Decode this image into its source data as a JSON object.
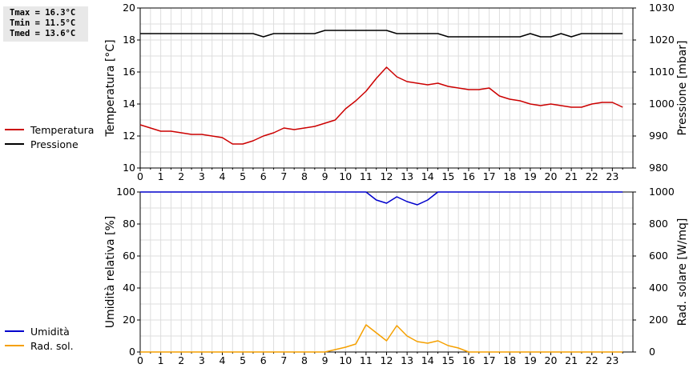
{
  "stats": {
    "tmax": "Tmax = 16.3°C",
    "tmin": "Tmin = 11.5°C",
    "tmed": "Tmed = 13.6°C"
  },
  "colors": {
    "temperature": "#cc0000",
    "pressure": "#000000",
    "humidity": "#0000cc",
    "solar": "#f5a000",
    "grid": "#dddddd"
  },
  "chart_data": [
    {
      "type": "line",
      "xlabel": "",
      "x_ticks": [
        "0",
        "1",
        "2",
        "3",
        "4",
        "5",
        "6",
        "7",
        "8",
        "9",
        "10",
        "11",
        "12",
        "13",
        "14",
        "15",
        "16",
        "17",
        "18",
        "19",
        "20",
        "21",
        "22",
        "23"
      ],
      "xlim": [
        0,
        24
      ],
      "ylabel": "Temperatura [°C]",
      "ylim": [
        10,
        20
      ],
      "y_ticks": [
        "10",
        "12",
        "14",
        "16",
        "18",
        "20"
      ],
      "y2label": "Pressione [mbar]",
      "y2lim": [
        980,
        1030
      ],
      "y2_ticks": [
        "980",
        "990",
        "1000",
        "1010",
        "1020",
        "1030"
      ],
      "grid": true,
      "legend": "left",
      "series": [
        {
          "name": "Temperatura",
          "axis": "left",
          "x": [
            0,
            0.5,
            1,
            1.5,
            2,
            2.5,
            3,
            3.5,
            4,
            4.5,
            5,
            5.5,
            6,
            6.5,
            7,
            7.5,
            8,
            8.5,
            9,
            9.5,
            10,
            10.5,
            11,
            11.5,
            12,
            12.5,
            13,
            13.5,
            14,
            14.5,
            15,
            15.5,
            16,
            16.5,
            17,
            17.5,
            18,
            18.5,
            19,
            19.5,
            20,
            20.5,
            21,
            21.5,
            22,
            22.5,
            23,
            23.5
          ],
          "y": [
            12.7,
            12.5,
            12.3,
            12.3,
            12.2,
            12.1,
            12.1,
            12.0,
            11.9,
            11.5,
            11.5,
            11.7,
            12.0,
            12.2,
            12.5,
            12.4,
            12.5,
            12.6,
            12.8,
            13.0,
            13.7,
            14.2,
            14.8,
            15.6,
            16.3,
            15.7,
            15.4,
            15.3,
            15.2,
            15.3,
            15.1,
            15.0,
            14.9,
            14.9,
            15.0,
            14.5,
            14.3,
            14.2,
            14.0,
            13.9,
            14.0,
            13.9,
            13.8,
            13.8,
            14.0,
            14.1,
            14.1,
            13.8
          ]
        },
        {
          "name": "Pressione",
          "axis": "right",
          "x": [
            0,
            5.5,
            6,
            6.5,
            8.5,
            9,
            11.5,
            12,
            12.5,
            14.5,
            15,
            18.5,
            19,
            19.5,
            20,
            20.5,
            21,
            21.5,
            22,
            23.5
          ],
          "y": [
            1022,
            1022,
            1021,
            1022,
            1022,
            1023,
            1023,
            1023,
            1022,
            1022,
            1021,
            1021,
            1022,
            1021,
            1021,
            1022,
            1021,
            1022,
            1022,
            1022
          ]
        }
      ]
    },
    {
      "type": "line",
      "xlabel": "",
      "x_ticks": [
        "0",
        "1",
        "2",
        "3",
        "4",
        "5",
        "6",
        "7",
        "8",
        "9",
        "10",
        "11",
        "12",
        "13",
        "14",
        "15",
        "16",
        "17",
        "18",
        "19",
        "20",
        "21",
        "22",
        "23"
      ],
      "xlim": [
        0,
        24
      ],
      "ylabel": "Umidità relativa [%]",
      "ylim": [
        0,
        100
      ],
      "y_ticks": [
        "0",
        "20",
        "40",
        "60",
        "80",
        "100"
      ],
      "y2label": "Rad. solare [W/mq]",
      "y2lim": [
        0,
        1000
      ],
      "y2_ticks": [
        "0",
        "200",
        "400",
        "600",
        "800",
        "1000"
      ],
      "grid": true,
      "legend": "left",
      "series": [
        {
          "name": "Umidità",
          "axis": "left",
          "x": [
            0,
            11,
            11.5,
            12,
            12.5,
            13,
            13.5,
            14,
            14.5,
            23.5
          ],
          "y": [
            100,
            100,
            95,
            93,
            97,
            94,
            92,
            95,
            100,
            100
          ]
        },
        {
          "name": "Rad. sol.",
          "axis": "right",
          "x": [
            0,
            9,
            9.5,
            10,
            10.5,
            11,
            11.5,
            12,
            12.5,
            13,
            13.5,
            14,
            14.5,
            15,
            15.5,
            16,
            23.5
          ],
          "y": [
            0,
            0,
            15,
            30,
            50,
            170,
            120,
            70,
            165,
            100,
            65,
            55,
            70,
            40,
            25,
            0,
            0
          ]
        }
      ]
    }
  ]
}
